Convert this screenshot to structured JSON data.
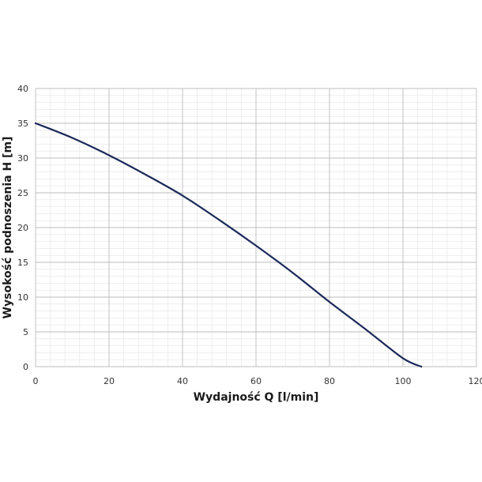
{
  "chart_data": {
    "type": "line",
    "xlabel": "Wydajność Q [l/min]",
    "ylabel": "Wysokość podnoszenia H [m]",
    "xlim": [
      0,
      120
    ],
    "ylim": [
      0,
      40
    ],
    "x_ticks": [
      "0",
      "20",
      "40",
      "60",
      "80",
      "100",
      "120"
    ],
    "y_ticks": [
      "0",
      "5",
      "10",
      "15",
      "20",
      "25",
      "30",
      "35",
      "40"
    ],
    "grid": true,
    "series": [
      {
        "color": "#1b2a5a",
        "x": [
          0,
          10,
          20,
          30,
          40,
          50,
          60,
          70,
          80,
          90,
          100,
          105
        ],
        "y": [
          35,
          32.9,
          30.4,
          27.6,
          24.6,
          21.1,
          17.4,
          13.5,
          9.3,
          5.3,
          1.2,
          0
        ]
      }
    ]
  }
}
